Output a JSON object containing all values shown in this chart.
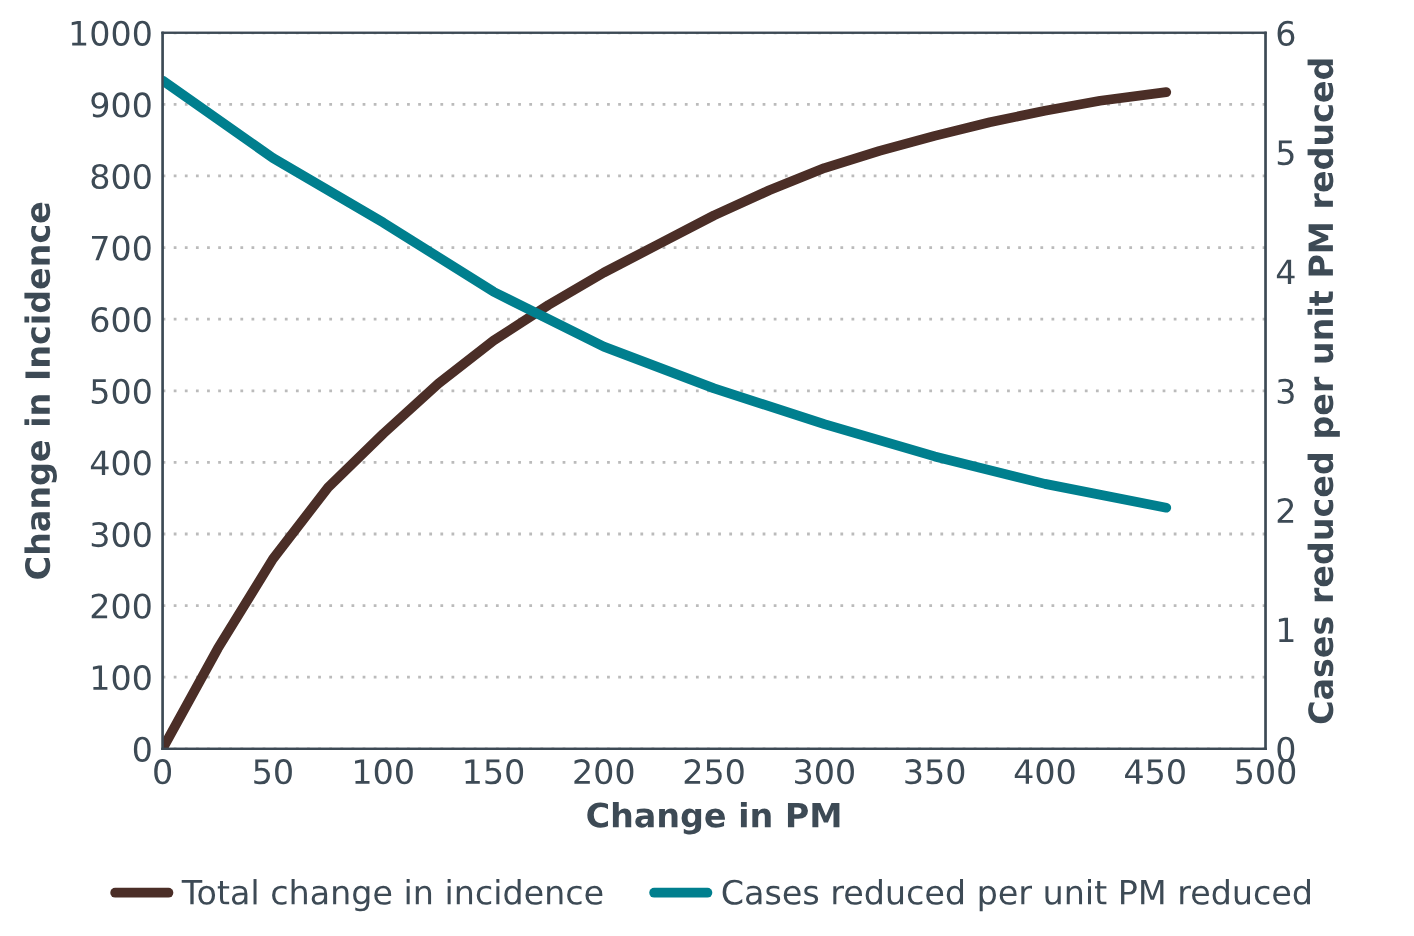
{
  "chart_data": {
    "type": "line",
    "xlabel": "Change in PM",
    "ylabel": "Change in Incidence",
    "y2label": "Cases reduced per unit PM reduced",
    "xlim": [
      0,
      500
    ],
    "xticks": [
      0,
      50,
      100,
      150,
      200,
      250,
      300,
      350,
      400,
      450,
      500
    ],
    "ylim": [
      0,
      1000
    ],
    "yticks": [
      0,
      100,
      200,
      300,
      400,
      500,
      600,
      700,
      800,
      900,
      1000
    ],
    "y2lim": [
      0,
      6
    ],
    "y2ticks": [
      0,
      1,
      2,
      3,
      4,
      5,
      6
    ],
    "grid": "y",
    "legend": "bottom",
    "marker": "none",
    "line_style": "solid",
    "series": [
      {
        "name": "Total change in incidence",
        "color": "#4b2e27",
        "x": [
          0,
          25,
          50,
          75,
          100,
          125,
          150,
          175,
          200,
          225,
          250,
          275,
          300,
          325,
          350,
          375,
          400,
          425,
          455
        ],
        "values": [
          0,
          140,
          265,
          365,
          440,
          510,
          570,
          620,
          665,
          705,
          745,
          780,
          811,
          835,
          856,
          875,
          891,
          905,
          917
        ]
      },
      {
        "name": "Cases reduced per unit PM reduced",
        "color": "#007f8e",
        "axis": "y2",
        "x": [
          0,
          50,
          100,
          150,
          200,
          250,
          300,
          350,
          400,
          455
        ],
        "values": [
          5.6,
          4.95,
          4.41,
          3.83,
          3.37,
          3.02,
          2.72,
          2.45,
          2.22,
          2.02
        ]
      }
    ]
  }
}
